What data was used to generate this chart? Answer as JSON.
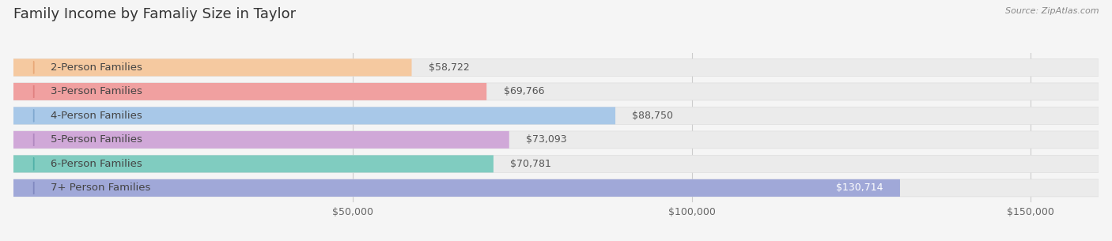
{
  "title": "Family Income by Famaliy Size in Taylor",
  "source": "Source: ZipAtlas.com",
  "categories": [
    "2-Person Families",
    "3-Person Families",
    "4-Person Families",
    "5-Person Families",
    "6-Person Families",
    "7+ Person Families"
  ],
  "values": [
    58722,
    69766,
    88750,
    73093,
    70781,
    130714
  ],
  "bar_colors": [
    "#f5c9a0",
    "#f0a0a0",
    "#a8c8e8",
    "#d0a8d8",
    "#80ccc0",
    "#a0a8d8"
  ],
  "icon_colors": [
    "#e8a878",
    "#e08080",
    "#80a8d0",
    "#b088c0",
    "#50b0a8",
    "#8088c0"
  ],
  "value_label_colors": [
    "#666666",
    "#666666",
    "#666666",
    "#666666",
    "#666666",
    "#ffffff"
  ],
  "xlim": [
    0,
    160000
  ],
  "background_color": "#f5f5f5",
  "bar_bg_color": "#ebebeb",
  "title_fontsize": 13,
  "label_fontsize": 9.5,
  "value_fontsize": 9,
  "tick_fontsize": 9
}
